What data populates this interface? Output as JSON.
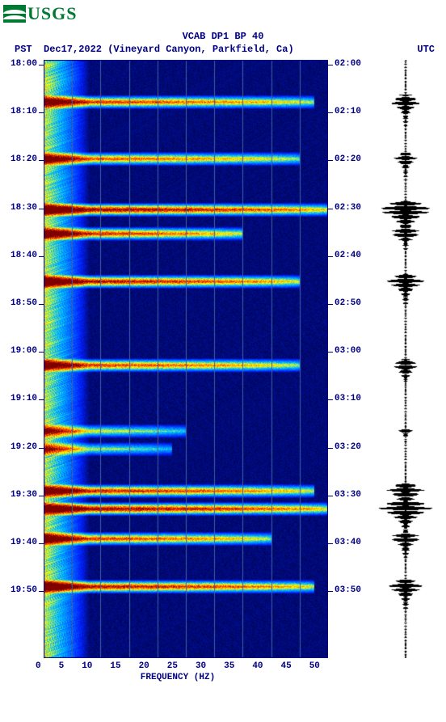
{
  "logo": {
    "text": "USGS"
  },
  "chart": {
    "type": "spectrogram",
    "title": "VCAB DP1 BP 40",
    "subtitle_left": "PST",
    "subtitle_mid": "Dec17,2022 (Vineyard Canyon, Parkfield, Ca)",
    "subtitle_right": "UTC",
    "xlabel": "FREQUENCY (HZ)",
    "xlim": [
      0,
      50
    ],
    "xtick_step": 5,
    "xticks": [
      "0",
      "5",
      "10",
      "15",
      "20",
      "25",
      "30",
      "35",
      "40",
      "45",
      "50"
    ],
    "y_left_ticks": [
      "18:00",
      "18:10",
      "18:20",
      "18:30",
      "18:40",
      "18:50",
      "19:00",
      "19:10",
      "19:20",
      "19:30",
      "19:40",
      "19:50"
    ],
    "y_right_ticks": [
      "02:00",
      "02:10",
      "02:20",
      "02:30",
      "02:40",
      "02:50",
      "03:00",
      "03:10",
      "03:20",
      "03:30",
      "03:40",
      "03:50"
    ],
    "y_range_minutes": [
      0,
      120
    ],
    "background_color": "#ffffff",
    "spectrogram_bg": "#00003c",
    "text_color": "#000080",
    "title_fontsize": 12,
    "label_fontsize": 11,
    "colormap": {
      "low": "#00003c",
      "mid_low": "#0020ff",
      "mid": "#00c0ff",
      "mid_high": "#ffff00",
      "high": "#ff4000",
      "peak": "#800000"
    },
    "event_rows": [
      {
        "t": 0.07,
        "intensity": 0.85,
        "width": 0.95
      },
      {
        "t": 0.165,
        "intensity": 0.8,
        "width": 0.9
      },
      {
        "t": 0.25,
        "intensity": 1.0,
        "width": 1.0
      },
      {
        "t": 0.29,
        "intensity": 0.9,
        "width": 0.7
      },
      {
        "t": 0.37,
        "intensity": 0.95,
        "width": 0.9
      },
      {
        "t": 0.51,
        "intensity": 0.85,
        "width": 0.9
      },
      {
        "t": 0.62,
        "intensity": 0.6,
        "width": 0.5
      },
      {
        "t": 0.65,
        "intensity": 0.55,
        "width": 0.45
      },
      {
        "t": 0.72,
        "intensity": 0.9,
        "width": 0.95
      },
      {
        "t": 0.75,
        "intensity": 1.0,
        "width": 1.0
      },
      {
        "t": 0.8,
        "intensity": 0.85,
        "width": 0.8
      },
      {
        "t": 0.88,
        "intensity": 0.95,
        "width": 0.95
      }
    ],
    "low_freq_band": {
      "freq_max": 8,
      "base_intensity": 0.55
    },
    "grid_color": "#4060a0",
    "waveform": {
      "color": "#000000",
      "bg": "#ffffff",
      "events": [
        {
          "t": 0.07,
          "amp": 0.55,
          "dur": 0.04
        },
        {
          "t": 0.165,
          "amp": 0.4,
          "dur": 0.035
        },
        {
          "t": 0.25,
          "amp": 1.0,
          "dur": 0.05
        },
        {
          "t": 0.29,
          "amp": 0.45,
          "dur": 0.03
        },
        {
          "t": 0.37,
          "amp": 0.7,
          "dur": 0.04
        },
        {
          "t": 0.51,
          "amp": 0.5,
          "dur": 0.035
        },
        {
          "t": 0.62,
          "amp": 0.25,
          "dur": 0.02
        },
        {
          "t": 0.72,
          "amp": 0.7,
          "dur": 0.04
        },
        {
          "t": 0.75,
          "amp": 0.9,
          "dur": 0.045
        },
        {
          "t": 0.8,
          "amp": 0.55,
          "dur": 0.035
        },
        {
          "t": 0.88,
          "amp": 0.65,
          "dur": 0.04
        }
      ],
      "noise_amp": 0.06
    }
  }
}
